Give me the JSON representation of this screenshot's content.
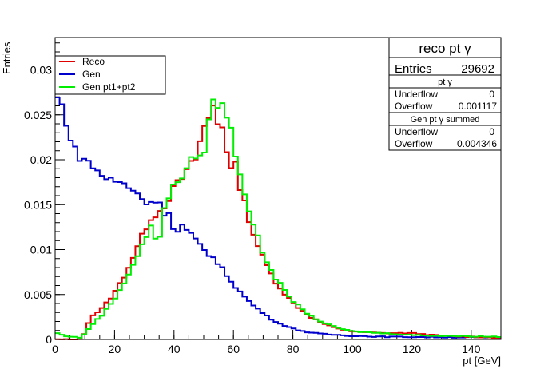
{
  "chart_data": {
    "type": "line",
    "xlabel": "pt [GeV]",
    "ylabel": "Entries",
    "xlim": [
      0,
      150
    ],
    "ylim": [
      0,
      0.0336
    ],
    "grid": false,
    "legend_position": "top-left",
    "x_ticks": [
      "0",
      "20",
      "40",
      "60",
      "80",
      "100",
      "120",
      "140"
    ],
    "y_ticks": [
      "0",
      "0.005",
      "0.01",
      "0.015",
      "0.02",
      "0.025",
      "0.03"
    ],
    "x_tick_values": [
      0,
      20,
      40,
      60,
      80,
      100,
      120,
      140
    ],
    "y_tick_values": [
      0,
      0.005,
      0.01,
      0.015,
      0.02,
      0.025,
      0.03
    ],
    "bin_width": 1.5,
    "series": [
      {
        "name": "Reco",
        "color": "#e00000",
        "anchors": [
          [
            0,
            0
          ],
          [
            9,
            0
          ],
          [
            12,
            0.0025
          ],
          [
            16,
            0.0035
          ],
          [
            20,
            0.0052
          ],
          [
            24,
            0.0075
          ],
          [
            28,
            0.0105
          ],
          [
            32,
            0.0135
          ],
          [
            36,
            0.0145
          ],
          [
            40,
            0.0168
          ],
          [
            44,
            0.0185
          ],
          [
            48,
            0.0205
          ],
          [
            50,
            0.0225
          ],
          [
            53,
            0.026
          ],
          [
            56,
            0.0262
          ],
          [
            58,
            0.024
          ],
          [
            61,
            0.0188
          ],
          [
            64,
            0.0148
          ],
          [
            67,
            0.0115
          ],
          [
            70,
            0.009
          ],
          [
            74,
            0.0065
          ],
          [
            78,
            0.0048
          ],
          [
            82,
            0.0035
          ],
          [
            86,
            0.0025
          ],
          [
            90,
            0.0018
          ],
          [
            95,
            0.0012
          ],
          [
            100,
            0.0009
          ],
          [
            110,
            0.0007
          ],
          [
            120,
            0.0007
          ],
          [
            130,
            0.0004
          ],
          [
            150,
            0.0002
          ]
        ],
        "bumps": [
          [
            58.5,
            -0.003
          ],
          [
            55.5,
            -0.002
          ],
          [
            49.5,
            0.0008
          ]
        ]
      },
      {
        "name": "Gen",
        "color": "#0000cc",
        "anchors": [
          [
            0,
            0.0272
          ],
          [
            3,
            0.0255
          ],
          [
            6,
            0.0212
          ],
          [
            9,
            0.0202
          ],
          [
            12,
            0.0195
          ],
          [
            15,
            0.0185
          ],
          [
            18,
            0.0178
          ],
          [
            21,
            0.0175
          ],
          [
            24,
            0.0172
          ],
          [
            27,
            0.0165
          ],
          [
            30,
            0.0155
          ],
          [
            33,
            0.0148
          ],
          [
            36,
            0.0142
          ],
          [
            39,
            0.0138
          ],
          [
            42,
            0.0128
          ],
          [
            45,
            0.0118
          ],
          [
            48,
            0.0108
          ],
          [
            51,
            0.0098
          ],
          [
            54,
            0.0088
          ],
          [
            57,
            0.0075
          ],
          [
            60,
            0.0062
          ],
          [
            63,
            0.005
          ],
          [
            66,
            0.004
          ],
          [
            69,
            0.0032
          ],
          [
            72,
            0.0024
          ],
          [
            76,
            0.0017
          ],
          [
            80,
            0.0012
          ],
          [
            85,
            0.0008
          ],
          [
            90,
            0.0006
          ],
          [
            100,
            0.0004
          ],
          [
            110,
            0.0003
          ],
          [
            150,
            0.0002
          ]
        ],
        "bumps": [
          [
            34.5,
            0.001
          ],
          [
            40.5,
            -0.0012
          ]
        ]
      },
      {
        "name": "Gen pt1+pt2",
        "color": "#00ee00",
        "anchors": [
          [
            0,
            0.0008
          ],
          [
            3,
            0.0004
          ],
          [
            9,
            0.0002
          ],
          [
            12,
            0.0015
          ],
          [
            16,
            0.0028
          ],
          [
            20,
            0.0045
          ],
          [
            24,
            0.0068
          ],
          [
            28,
            0.0095
          ],
          [
            32,
            0.0125
          ],
          [
            36,
            0.0145
          ],
          [
            40,
            0.017
          ],
          [
            44,
            0.0188
          ],
          [
            48,
            0.021
          ],
          [
            51,
            0.0235
          ],
          [
            53,
            0.0262
          ],
          [
            56,
            0.0262
          ],
          [
            58,
            0.025
          ],
          [
            61,
            0.0205
          ],
          [
            64,
            0.016
          ],
          [
            67,
            0.0125
          ],
          [
            70,
            0.0095
          ],
          [
            74,
            0.007
          ],
          [
            78,
            0.005
          ],
          [
            82,
            0.0037
          ],
          [
            86,
            0.0026
          ],
          [
            90,
            0.0019
          ],
          [
            95,
            0.0013
          ],
          [
            100,
            0.0009
          ],
          [
            110,
            0.0007
          ],
          [
            120,
            0.0005
          ],
          [
            130,
            0.0004
          ],
          [
            150,
            0.0003
          ]
        ],
        "bumps": [
          [
            34.5,
            -0.0025
          ],
          [
            49.5,
            -0.0015
          ]
        ]
      }
    ]
  },
  "legend": {
    "items": [
      {
        "label": "Reco",
        "color": "#e00000"
      },
      {
        "label": "Gen",
        "color": "#0000cc"
      },
      {
        "label": "Gen pt1+pt2",
        "color": "#00ee00"
      }
    ]
  },
  "stats": {
    "title": "reco pt γ",
    "entries_label": "Entries",
    "entries_value": "29692",
    "section1_title": "pt  γ",
    "underflow1_label": "Underflow",
    "underflow1_value": "0",
    "overflow1_label": "Overflow",
    "overflow1_value": "0.001117",
    "section2_title": "Gen pt  γ summed",
    "underflow2_label": "Underflow",
    "underflow2_value": "0",
    "overflow2_label": "Overflow",
    "overflow2_value": "0.004346"
  }
}
